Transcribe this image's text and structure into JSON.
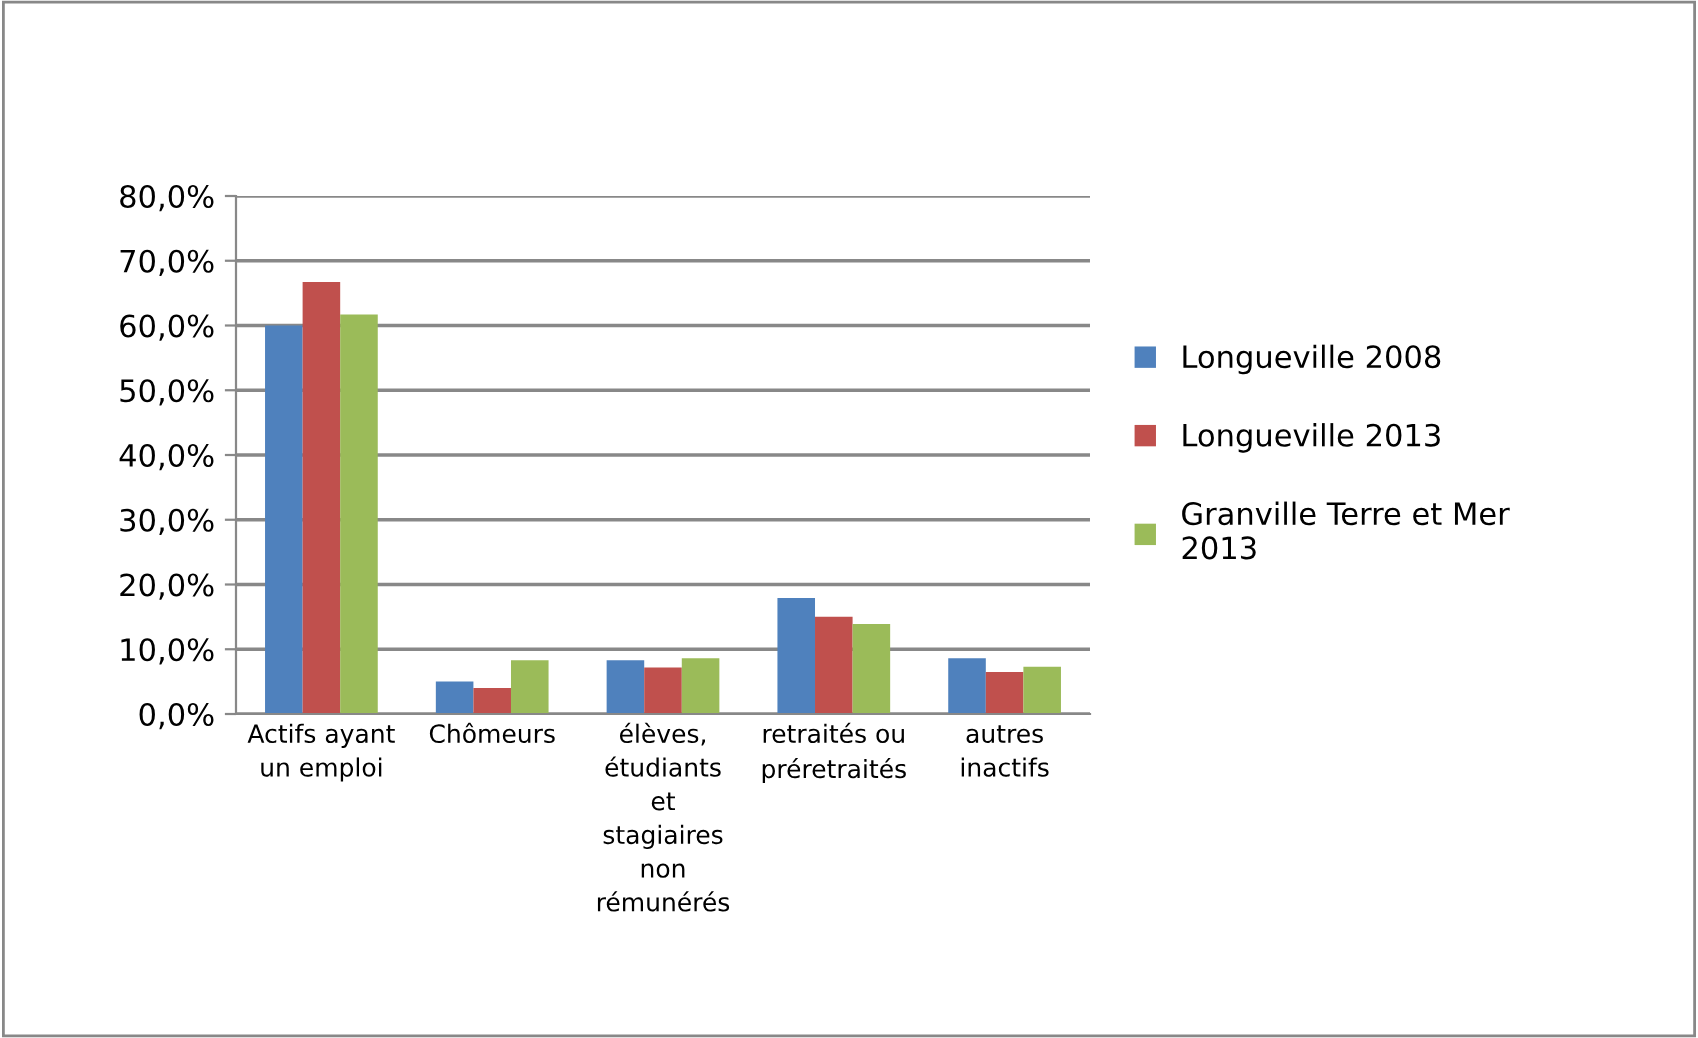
{
  "chart_data": {
    "type": "bar",
    "categories": [
      "Actifs ayant\nun emploi",
      "Chômeurs",
      "élèves,\nétudiants\net\nstagiaires\nnon\nrémunérés",
      "retraités ou\npréretraités",
      "autres\ninactifs"
    ],
    "series": [
      {
        "name": "Longueville 2008",
        "color": "#4f81bd",
        "values": [
          60.0,
          5.0,
          8.3,
          17.9,
          8.6
        ]
      },
      {
        "name": "Longueville 2013",
        "color": "#c0504d",
        "values": [
          66.7,
          4.0,
          7.2,
          15.0,
          6.5
        ]
      },
      {
        "name": "Granville Terre et Mer\n2013",
        "color": "#9bbb59",
        "values": [
          61.7,
          8.3,
          8.6,
          13.9,
          7.3
        ]
      }
    ],
    "ylim": [
      0,
      80
    ],
    "yticks": [
      {
        "value": 0,
        "label": "0,0%"
      },
      {
        "value": 10,
        "label": "10,0%"
      },
      {
        "value": 20,
        "label": "20,0%"
      },
      {
        "value": 30,
        "label": "30,0%"
      },
      {
        "value": 40,
        "label": "40,0%"
      },
      {
        "value": 50,
        "label": "50,0%"
      },
      {
        "value": 60,
        "label": "60,0%"
      },
      {
        "value": 70,
        "label": "70,0%"
      },
      {
        "value": 80,
        "label": "80,0%"
      }
    ],
    "grid": "y",
    "legend": "right"
  }
}
